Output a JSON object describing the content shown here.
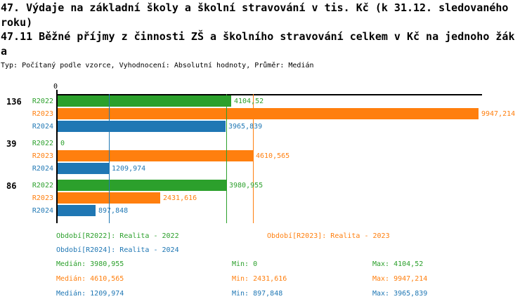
{
  "title": {
    "lines": [
      "47. Výdaje na základní školy a školní stravování v tis. Kč (k 31.12. sledovaného",
      "roku)",
      "47.11 Běžné příjmy z činnosti ZŠ a školního stravování celkem v Kč na jednoho žák",
      "a"
    ],
    "subtitle": "Typ: Počítaný podle vzorce, Vyhodnocení: Absolutní hodnoty, Průměr: Medián"
  },
  "colors": {
    "r2022": "#2ca02c",
    "r2023": "#ff7f0e",
    "r2024": "#1f77b4",
    "axis": "#000000",
    "background": "#ffffff"
  },
  "chart_data": {
    "type": "bar",
    "orientation": "horizontal",
    "title": "",
    "xlabel": "",
    "ylabel": "",
    "xlim": [
      0,
      9950
    ],
    "grid": false,
    "origin_tick_label": "0",
    "categories": [
      "136",
      "39",
      "86"
    ],
    "series": [
      {
        "name": "R2022",
        "color": "#2ca02c",
        "period_label": "Období[R2022]: Realita - 2022",
        "values": [
          4104.52,
          0,
          3980.955
        ],
        "value_labels": [
          "4104,52",
          "0",
          "3980,955"
        ],
        "median": 3980.955
      },
      {
        "name": "R2023",
        "color": "#ff7f0e",
        "period_label": "Období[R2023]: Realita - 2023",
        "values": [
          9947.214,
          4610.565,
          2431.616
        ],
        "value_labels": [
          "9947,214",
          "4610,565",
          "2431,616"
        ],
        "median": 4610.565
      },
      {
        "name": "R2024",
        "color": "#1f77b4",
        "period_label": "Období[R2024]: Realita - 2024",
        "values": [
          3965.839,
          1209.974,
          897.848
        ],
        "value_labels": [
          "3965,839",
          "1209,974",
          "897,848"
        ],
        "median": 1209.974
      }
    ]
  },
  "stats": {
    "rows": [
      {
        "median": "Medián: 3980,955",
        "min": "Min: 0",
        "max": "Max: 4104,52"
      },
      {
        "median": "Medián: 4610,565",
        "min": "Min: 2431,616",
        "max": "Max: 9947,214"
      },
      {
        "median": "Medián: 1209,974",
        "min": "Min: 897,848",
        "max": "Max: 3965,839"
      }
    ]
  }
}
